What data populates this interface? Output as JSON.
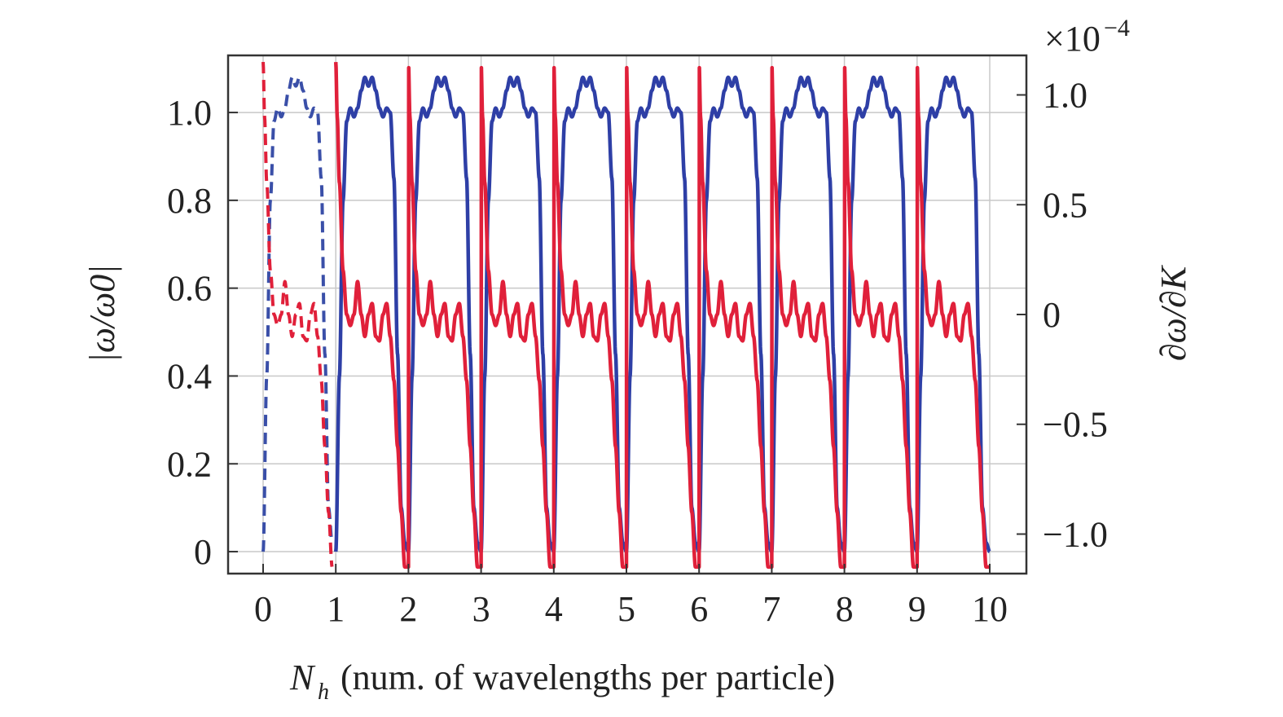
{
  "chart_data": {
    "type": "line",
    "xlabel": "N_h (num. of wavelengths per particle)",
    "xlabel_symbol": "N",
    "xlabel_subscript": "h",
    "xlabel_rest": "(num. of wavelengths per particle)",
    "ylabel_left": "|ω/ω0|",
    "ylabel_right": "∂ω/∂K",
    "right_exponent_base": "×10",
    "right_exponent": "−4",
    "xlim": [
      0,
      10
    ],
    "ylim_left": [
      -0.05,
      1.13
    ],
    "ylim_right": [
      -1.18,
      1.18
    ],
    "x_ticks": [
      0,
      1,
      2,
      3,
      4,
      5,
      6,
      7,
      8,
      9,
      10
    ],
    "x_tick_labels": [
      "0",
      "1",
      "2",
      "3",
      "4",
      "5",
      "6",
      "7",
      "8",
      "9",
      "10"
    ],
    "y_left_ticks": [
      0,
      0.2,
      0.4,
      0.6,
      0.8,
      1.0
    ],
    "y_left_tick_labels": [
      "0",
      "0.2",
      "0.4",
      "0.6",
      "0.8",
      "1.0"
    ],
    "y_right_ticks": [
      -1.0,
      -0.5,
      0,
      0.5,
      1.0
    ],
    "y_right_tick_labels": [
      "−1.0",
      "−0.5",
      "0",
      "0.5",
      "1.0"
    ],
    "grid": true,
    "colors": {
      "omega": "#2e3fa6",
      "derivative": "#e0203a",
      "derivative_peak": "#ff2a00"
    },
    "series": [
      {
        "axis": "left",
        "style": "dashed",
        "color": "#3a4fa8",
        "period_profile_x": [
          0,
          0.05,
          0.1,
          0.15,
          0.2,
          0.25,
          0.3,
          0.35,
          0.4,
          0.45,
          0.5,
          0.55,
          0.6,
          0.65,
          0.7,
          0.75,
          0.8,
          0.85,
          0.9,
          0.95,
          1.0
        ],
        "period_profile_y": [
          0,
          0.4,
          0.8,
          0.98,
          1.01,
          0.99,
          1.01,
          1.05,
          1.08,
          1.06,
          1.08,
          1.05,
          1.01,
          0.99,
          1.01,
          1.0,
          0.85,
          0.45,
          0.1,
          0.02,
          0
        ],
        "x_range": [
          0,
          0.95
        ]
      },
      {
        "axis": "left",
        "style": "solid",
        "color": "#2e3fa6",
        "period_profile_x": [
          0,
          0.05,
          0.1,
          0.15,
          0.2,
          0.25,
          0.3,
          0.35,
          0.4,
          0.45,
          0.5,
          0.55,
          0.6,
          0.65,
          0.7,
          0.75,
          0.8,
          0.85,
          0.9,
          0.95,
          1.0
        ],
        "period_profile_y": [
          0,
          0.4,
          0.8,
          0.98,
          1.01,
          0.99,
          1.01,
          1.05,
          1.08,
          1.06,
          1.08,
          1.05,
          1.01,
          0.99,
          1.01,
          1.0,
          0.85,
          0.45,
          0.1,
          0.02,
          0
        ],
        "x_range": [
          1,
          10
        ]
      },
      {
        "axis": "right",
        "style": "dashed",
        "color": "#e0203a",
        "period_profile_x": [
          0,
          0.02,
          0.05,
          0.1,
          0.15,
          0.2,
          0.25,
          0.3,
          0.35,
          0.4,
          0.45,
          0.5,
          0.55,
          0.6,
          0.65,
          0.7,
          0.75,
          0.8,
          0.85,
          0.9,
          0.95,
          1.0
        ],
        "period_profile_y": [
          1.15,
          0.9,
          0.6,
          0.2,
          0.0,
          -0.05,
          0.0,
          0.15,
          0.0,
          -0.1,
          0.0,
          0.05,
          -0.1,
          -0.12,
          0.0,
          0.05,
          -0.1,
          -0.3,
          -0.6,
          -0.9,
          -1.15,
          -1.15
        ],
        "x_range": [
          0,
          0.95
        ]
      },
      {
        "axis": "right",
        "style": "solid",
        "color": "#e0203a",
        "period_profile_x": [
          0,
          0.02,
          0.05,
          0.1,
          0.15,
          0.2,
          0.25,
          0.3,
          0.35,
          0.4,
          0.45,
          0.5,
          0.55,
          0.6,
          0.65,
          0.7,
          0.75,
          0.8,
          0.85,
          0.9,
          0.95,
          1.0
        ],
        "period_profile_y": [
          1.15,
          0.9,
          0.6,
          0.2,
          0.0,
          -0.05,
          0.0,
          0.15,
          0.0,
          -0.1,
          0.0,
          0.05,
          -0.1,
          -0.12,
          0.0,
          0.05,
          -0.1,
          -0.3,
          -0.6,
          -0.9,
          -1.15,
          -1.15
        ],
        "x_range": [
          1,
          10
        ]
      }
    ]
  }
}
